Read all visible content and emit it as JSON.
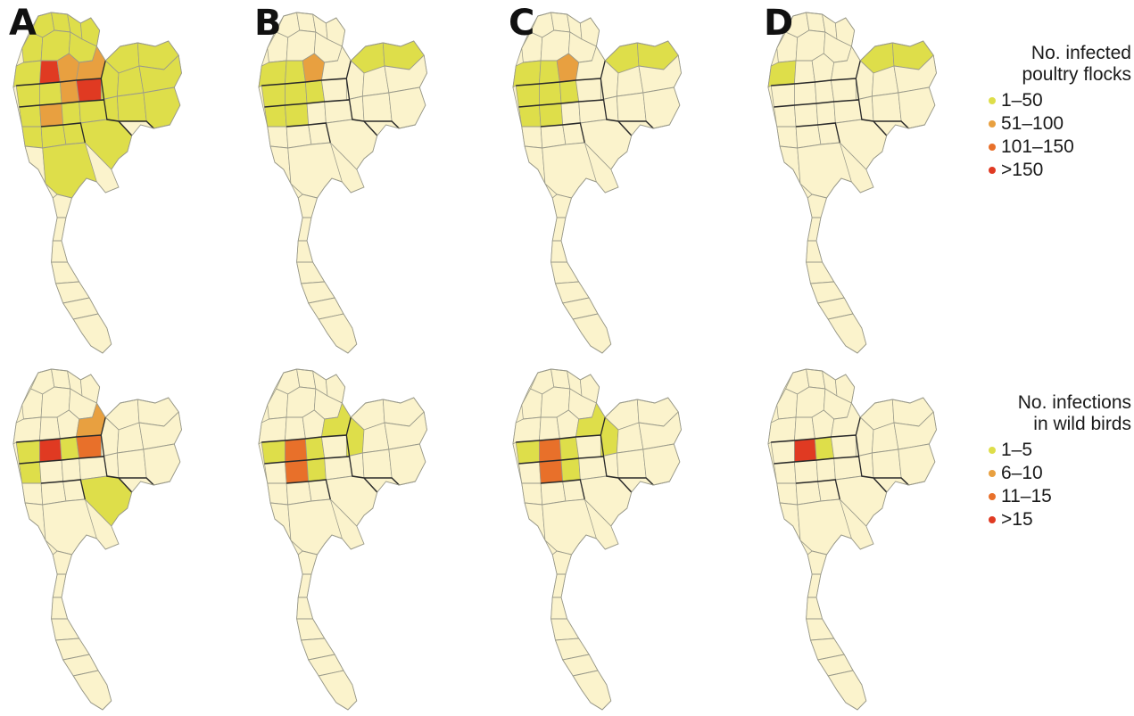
{
  "panels": [
    {
      "label": "A",
      "poultry": {
        "yellow": [
          0,
          1,
          2,
          3,
          4,
          5,
          6,
          7,
          8,
          9,
          10,
          11,
          12,
          13,
          14,
          15,
          16,
          17,
          18,
          19,
          20,
          21,
          22,
          23,
          24,
          25,
          26,
          27,
          28,
          29,
          30,
          32
        ],
        "orange": [
          9,
          10,
          13,
          16
        ],
        "darkorange": [],
        "red": [
          8,
          14
        ]
      },
      "wild": {
        "yellow": [
          11,
          13,
          15,
          30
        ],
        "orange": [
          10
        ],
        "darkorange": [
          14
        ],
        "red": [
          12
        ]
      }
    },
    {
      "label": "B",
      "poultry": {
        "yellow": [
          7,
          8,
          11,
          12,
          13,
          15,
          16,
          19,
          20
        ],
        "orange": [
          9
        ],
        "darkorange": [],
        "red": []
      },
      "wild": {
        "yellow": [
          10,
          11,
          13,
          17,
          21
        ],
        "orange": [],
        "darkorange": [
          12,
          16
        ],
        "red": []
      }
    },
    {
      "label": "C",
      "poultry": {
        "yellow": [
          7,
          8,
          11,
          12,
          13,
          15,
          16,
          19,
          20
        ],
        "orange": [
          9
        ],
        "darkorange": [],
        "red": []
      },
      "wild": {
        "yellow": [
          10,
          11,
          13,
          17,
          21
        ],
        "orange": [],
        "darkorange": [
          12,
          16
        ],
        "red": []
      }
    },
    {
      "label": "D",
      "poultry": {
        "yellow": [
          7,
          19,
          20
        ],
        "orange": [],
        "darkorange": [],
        "red": []
      },
      "wild": {
        "yellow": [
          13
        ],
        "orange": [],
        "darkorange": [],
        "red": [
          12
        ]
      }
    }
  ],
  "legend_poultry": {
    "title_line1": "No. infected",
    "title_line2": "poultry flocks",
    "items": [
      {
        "label": "1–50",
        "color": "#dede4a"
      },
      {
        "label": "51–100",
        "color": "#e8a040"
      },
      {
        "label": "101–150",
        "color": "#e8702a"
      },
      {
        "label": ">150",
        "color": "#e03a22"
      }
    ]
  },
  "legend_wild": {
    "title_line1": "No. infections",
    "title_line2": "in wild birds",
    "items": [
      {
        "label": "1–5",
        "color": "#dede4a"
      },
      {
        "label": "6–10",
        "color": "#e8a040"
      },
      {
        "label": "11–15",
        "color": "#e8702a"
      },
      {
        "label": ">15",
        "color": "#e03a22"
      }
    ]
  },
  "colors": {
    "base": "#fbf3cc",
    "border": "#9a9a8a",
    "region_line": "#2a2a2a",
    "yellow": "#dede4a",
    "orange": "#e8a040",
    "darkorange": "#e8702a",
    "red": "#e03a22"
  }
}
